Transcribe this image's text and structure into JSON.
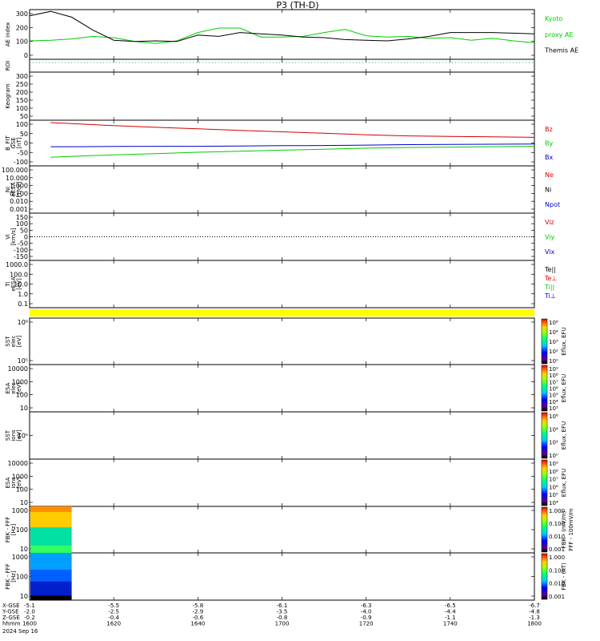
{
  "title": "P3 (TH-D)",
  "colors": {
    "black": "#000000",
    "red": "#d40000",
    "green": "#00cc00",
    "blue": "#0000cc",
    "yellow": "#ffff00"
  },
  "x_axis": {
    "ticks": [
      "1600",
      "1620",
      "1640",
      "1700",
      "1720",
      "1740",
      "1800"
    ],
    "row_labels": [
      "X-GSE",
      "Y-GSE",
      "Z-GSE",
      "hhmm",
      "2024 Sep 16"
    ],
    "x_gse": [
      "-5.1",
      "-5.5",
      "-5.8",
      "-6.1",
      "-6.3",
      "-6.5",
      "-6.7"
    ],
    "y_gse": [
      "-2.0",
      "-2.5",
      "-2.9",
      "-3.5",
      "-4.0",
      "-4.4",
      "-4.8"
    ],
    "z_gse": [
      "-0.2",
      "-0.4",
      "-0.6",
      "-0.8",
      "-0.9",
      "-1.1",
      "-1.3"
    ]
  },
  "panels": [
    {
      "id": "ae",
      "ylabel": [
        "AE index"
      ],
      "ticks": [
        "300",
        "200",
        "100",
        "0"
      ],
      "legend": [
        {
          "text": "Kyoto",
          "color": "green"
        },
        {
          "text": "proxy AE",
          "color": "green"
        },
        {
          "text": "Themis AE",
          "color": "black"
        }
      ]
    },
    {
      "id": "roi",
      "ylabel": [
        "ROI"
      ],
      "ticks": [],
      "legend": []
    },
    {
      "id": "keogram",
      "ylabel": [
        "Keogram"
      ],
      "ticks": [
        "300",
        "250",
        "200",
        "150",
        "100",
        "50"
      ],
      "legend": []
    },
    {
      "id": "bfit",
      "ylabel": [
        "B_FIT",
        "GSE",
        "[nT]"
      ],
      "ticks": [
        "100",
        "50",
        "0",
        "-50",
        "-100"
      ],
      "legend": [
        {
          "text": "Bz",
          "color": "red"
        },
        {
          "text": "By",
          "color": "green"
        },
        {
          "text": "Bx",
          "color": "blue"
        }
      ]
    },
    {
      "id": "ni",
      "ylabel": [
        "Ni",
        "eESA",
        "[1/cc]"
      ],
      "ticks": [
        "100.000",
        "10.000",
        "1.000",
        "0.100",
        "0.010",
        "0.001"
      ],
      "legend": [
        {
          "text": "Ne",
          "color": "red"
        },
        {
          "text": "Ni",
          "color": "black"
        },
        {
          "text": "Npot",
          "color": "blue"
        }
      ]
    },
    {
      "id": "vi",
      "ylabel": [
        "Vi",
        "[km/s]"
      ],
      "ticks": [
        "150",
        "100",
        "50",
        "0",
        "-50",
        "-100",
        "-150"
      ],
      "legend": [
        {
          "text": "Viz",
          "color": "red"
        },
        {
          "text": "Viy",
          "color": "green"
        },
        {
          "text": "Vix",
          "color": "blue"
        }
      ]
    },
    {
      "id": "ti",
      "ylabel": [
        "Ti",
        "eESA",
        "[eV]"
      ],
      "ticks": [
        "1000.0",
        "100.0",
        "10.0",
        "1.0",
        "0.1"
      ],
      "legend": [
        {
          "text": "Te||",
          "color": "black"
        },
        {
          "text": "Te⊥",
          "color": "red"
        },
        {
          "text": "Ti||",
          "color": "green"
        },
        {
          "text": "Ti⊥",
          "color": "blue"
        }
      ]
    },
    {
      "id": "sst_e",
      "ylabel": [
        "SST",
        "elec",
        "[eV]"
      ],
      "ticks": [
        "10⁶",
        "10⁵"
      ],
      "cbar_label": "Eflux, EFU",
      "cbar_ticks": [
        "10⁸",
        "10⁴",
        "10³",
        "10²",
        "10⁰"
      ]
    },
    {
      "id": "esa_e",
      "ylabel": [
        "ESA",
        "elec",
        "[eV]"
      ],
      "ticks": [
        "10000",
        "1000",
        "100",
        "10"
      ],
      "cbar_label": "Eflux, EFU",
      "cbar_ticks": [
        "10⁹",
        "10⁸",
        "10⁷",
        "10⁶",
        "10⁵",
        "10⁴",
        "10³"
      ]
    },
    {
      "id": "sst_i",
      "ylabel": [
        "SST",
        "ions",
        "[eV]"
      ],
      "ticks": [
        "10⁵"
      ],
      "cbar_label": "Eflux, EFU",
      "cbar_ticks": [
        "10⁶",
        "10⁴",
        "10²",
        "10⁰"
      ]
    },
    {
      "id": "esa_i",
      "ylabel": [
        "ESA",
        "ions",
        "[eV]"
      ],
      "ticks": [
        "10000",
        "1000",
        "100",
        "10"
      ],
      "cbar_label": "Eflux, EFU",
      "cbar_ticks": [
        "10⁹",
        "10⁸",
        "10⁷",
        "10⁶",
        "10⁵",
        "10⁴"
      ]
    },
    {
      "id": "fbk_ffe",
      "ylabel": [
        "FBK - FFF",
        "[Hz]"
      ],
      "ticks": [
        "1000",
        "100",
        "10"
      ],
      "cbar_label": "FBK - (mV/m)",
      "cbar_label2": "FFF - 100mV/m",
      "cbar_ticks": [
        "1.000",
        "0.100",
        "0.010",
        "0.001"
      ]
    },
    {
      "id": "fbk_ffb",
      "ylabel": [
        "FBK - FFF",
        "[Hz]"
      ],
      "ticks": [
        "1000",
        "100",
        "10"
      ],
      "cbar_label": "FBK - (nT)",
      "cbar_ticks": [
        "1.000",
        "0.100",
        "0.010",
        "0.001"
      ]
    }
  ],
  "chart_data": {
    "type": "line",
    "title": "P3 (TH-D)",
    "x_range": [
      "1600",
      "1800"
    ],
    "ae_index": {
      "ylim": [
        -50,
        300
      ],
      "x": [
        "1600",
        "1605",
        "1610",
        "1615",
        "1620",
        "1625",
        "1630",
        "1635",
        "1640",
        "1645",
        "1650",
        "1655",
        "1700",
        "1705",
        "1710",
        "1715",
        "1720",
        "1725",
        "1730",
        "1735",
        "1740",
        "1745",
        "1750",
        "1755",
        "1800"
      ],
      "series": [
        {
          "name": "Kyoto proxy AE",
          "color": "green",
          "values": [
            75,
            80,
            90,
            110,
            100,
            70,
            55,
            75,
            140,
            175,
            175,
            105,
            105,
            110,
            140,
            165,
            115,
            105,
            110,
            95,
            100,
            80,
            95,
            75,
            60
          ]
        },
        {
          "name": "Themis AE",
          "color": "black",
          "values": [
            270,
            305,
            260,
            160,
            80,
            70,
            75,
            70,
            120,
            110,
            140,
            130,
            120,
            105,
            100,
            85,
            80,
            75,
            90,
            110,
            140,
            140,
            140,
            135,
            130
          ]
        }
      ]
    },
    "b_fit": {
      "ylim": [
        -100,
        100
      ],
      "x": [
        "1605",
        "1610",
        "1620",
        "1630",
        "1640",
        "1650",
        "1700",
        "1710",
        "1720",
        "1730",
        "1740",
        "1750",
        "1800"
      ],
      "series": [
        {
          "name": "Bz",
          "color": "red",
          "values": [
            100,
            95,
            85,
            77,
            70,
            62,
            55,
            48,
            40,
            35,
            32,
            30,
            28
          ]
        },
        {
          "name": "By",
          "color": "green",
          "values": [
            -70,
            -65,
            -58,
            -52,
            -45,
            -40,
            -35,
            -30,
            -25,
            -22,
            -20,
            -18,
            -16
          ]
        },
        {
          "name": "Bx",
          "color": "blue",
          "values": [
            -18,
            -18,
            -17,
            -16,
            -16,
            -15,
            -13,
            -12,
            -10,
            -8,
            -7,
            -6,
            -5
          ]
        }
      ]
    }
  }
}
